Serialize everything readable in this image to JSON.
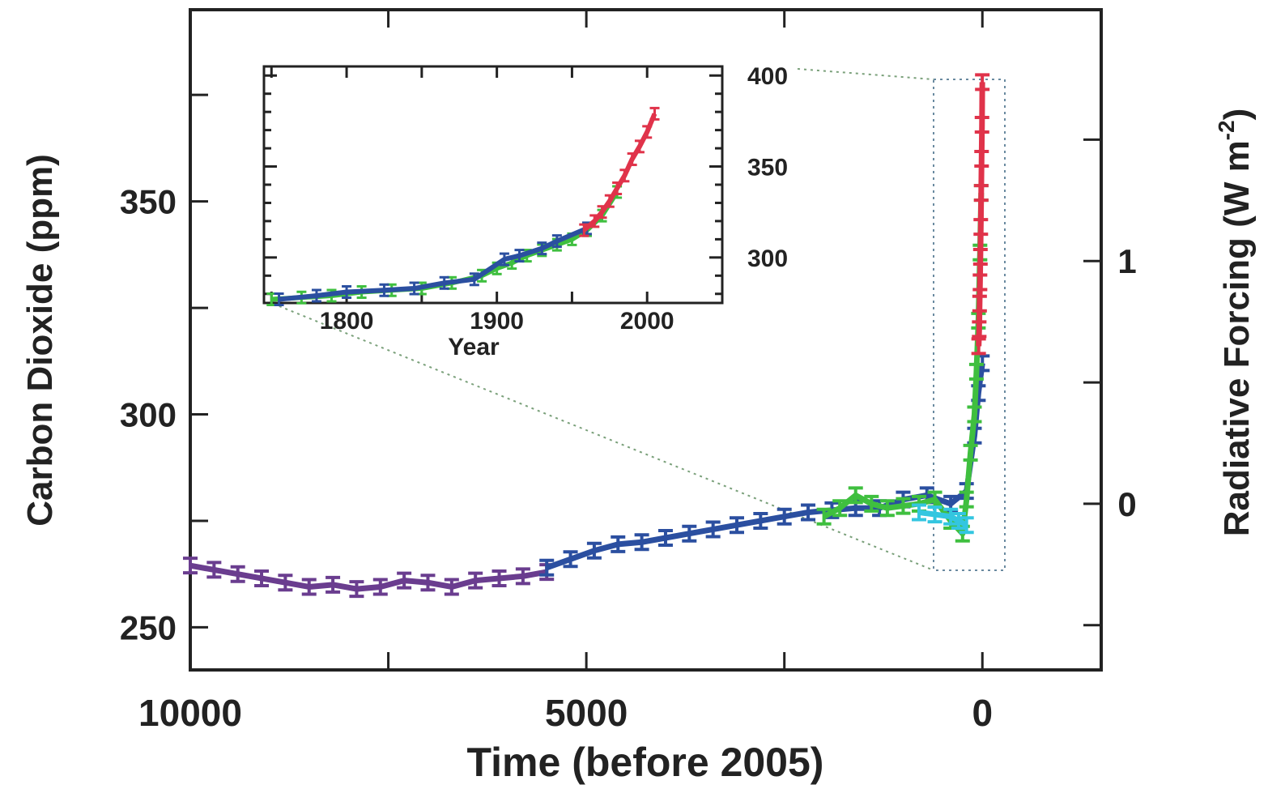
{
  "chart_data": {
    "type": "scatter",
    "main": {
      "xlabel": "Time (before 2005)",
      "ylabel_left": "Carbon Dioxide (ppm)",
      "ylabel_right": "Radiative Forcing (W m",
      "ylabel_right_superscript": "-2",
      "ylabel_right_close": ")",
      "xlim": [
        10000,
        -1500
      ],
      "ylim": [
        240,
        395
      ],
      "x_ticks": [
        10000,
        5000,
        0
      ],
      "x_tick_labels": [
        "10000",
        "5000",
        "0"
      ],
      "y_ticks": [
        250,
        300,
        350
      ],
      "y_tick_labels": [
        "250",
        "300",
        "350"
      ],
      "right_ticks": [
        0,
        1
      ],
      "right_tick_labels": [
        "0",
        "1"
      ],
      "right_axis_ppm_at_0": 279,
      "right_axis_ppm_at_1": 336
    },
    "series": [
      {
        "color": "#6a3d8f",
        "x": [
          10000,
          9700,
          9400,
          9100,
          8800,
          8500,
          8200,
          7900,
          7600,
          7300,
          7000,
          6700,
          6400,
          6100,
          5800,
          5500
        ],
        "y": [
          264.5,
          263.5,
          262.5,
          261.5,
          260.5,
          259.5,
          260,
          259,
          259.5,
          261,
          260.5,
          259.5,
          261,
          261.5,
          262,
          263
        ]
      },
      {
        "color": "#2b4fa0",
        "x": [
          5500,
          5200,
          4900,
          4600,
          4300,
          4000,
          3700,
          3400,
          3100,
          2800,
          2500,
          2200,
          1900,
          1600,
          1300,
          1000,
          700,
          400,
          200,
          100,
          50,
          0
        ],
        "y": [
          264,
          266,
          268,
          269.5,
          270,
          271,
          272,
          273,
          274,
          275,
          276,
          277,
          277.5,
          278,
          278,
          280,
          281,
          279,
          282,
          295,
          305,
          312
        ]
      },
      {
        "color": "#3fbf3f",
        "x": [
          2000,
          1800,
          1600,
          1400,
          1200,
          1000,
          800,
          600,
          400,
          250,
          200,
          150,
          100,
          75,
          50,
          30,
          15
        ],
        "y": [
          276,
          278,
          281,
          279,
          278,
          278.5,
          279,
          280,
          275,
          272,
          280,
          291,
          300,
          310,
          322,
          338,
          352
        ]
      },
      {
        "color": "#33c6e0",
        "x": [
          800,
          600,
          400,
          300,
          200
        ],
        "y": [
          277,
          276.5,
          276,
          275,
          274
        ]
      },
      {
        "color": "#e0334a",
        "x": [
          47,
          40,
          35,
          30,
          25,
          20,
          15,
          10,
          5,
          1
        ],
        "y": [
          316,
          320,
          326,
          331,
          337,
          344,
          352,
          360,
          368,
          378
        ]
      }
    ],
    "inset": {
      "xlabel": "Year",
      "xlim": [
        1745,
        2050
      ],
      "ylim": [
        275,
        405
      ],
      "x_ticks": [
        1800,
        1900,
        2000
      ],
      "x_tick_labels": [
        "1800",
        "1900",
        "2000"
      ],
      "y_ticks": [
        300,
        350,
        400
      ],
      "y_tick_labels": [
        "300",
        "350",
        "400"
      ],
      "series": [
        {
          "color": "#3fbf3f",
          "x": [
            1750,
            1770,
            1790,
            1810,
            1830,
            1850,
            1870,
            1890,
            1900,
            1910,
            1920,
            1930,
            1940,
            1950,
            1960,
            1970,
            1980
          ],
          "y": [
            277,
            278,
            279,
            281,
            282,
            283,
            286,
            290,
            294,
            297,
            301,
            304,
            307,
            310,
            315,
            323,
            336
          ]
        },
        {
          "color": "#2b4fa0",
          "x": [
            1755,
            1780,
            1800,
            1825,
            1845,
            1865,
            1885,
            1905,
            1915,
            1930,
            1940,
            1960
          ],
          "y": [
            277,
            279,
            281,
            282,
            283,
            286,
            288,
            299,
            301,
            305,
            309,
            316
          ]
        },
        {
          "color": "#e0334a",
          "x": [
            1958,
            1965,
            1970,
            1975,
            1980,
            1985,
            1990,
            1995,
            2000,
            2005
          ],
          "y": [
            315,
            320,
            325,
            331,
            338,
            345,
            354,
            361,
            369,
            379
          ]
        }
      ]
    }
  }
}
